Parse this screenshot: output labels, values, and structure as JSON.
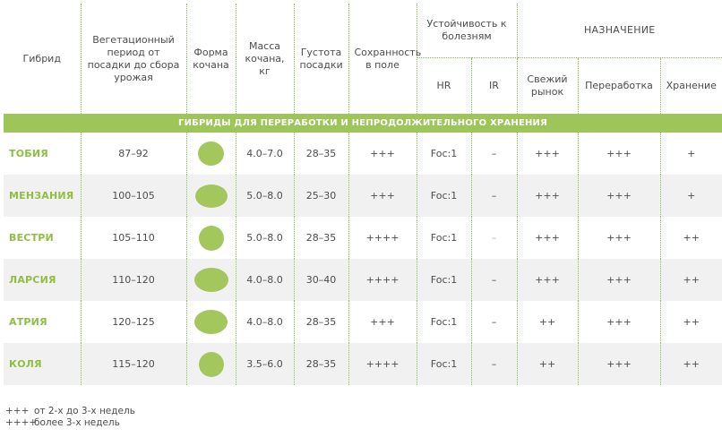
{
  "header": {
    "hybrid": "Гибрид",
    "vegetation_period": "Вегетационный период от посадки до сбора урожая",
    "head_shape": "Форма кочана",
    "head_mass": "Масса кочана, кг",
    "planting_density": "Густота посадки",
    "field_storage": "Сохранность в поле",
    "disease_resistance": "Устойчивость к болезням",
    "hr": "HR",
    "ir": "IR",
    "purpose": "НАЗНАЧЕНИЕ",
    "fresh_market": "Свежий рынок",
    "processing": "Переработка",
    "storage": "Хранение"
  },
  "section_title": "ГИБРИДЫ ДЛЯ ПЕРЕРАБОТКИ И НЕПРОДОЛЖИТЕЛЬНОГО ХРАНЕНИЯ",
  "shape_color": "#a3c75c",
  "rows": [
    {
      "name": "ТОБИЯ",
      "period": "87–92",
      "shape": "round",
      "mass": "4.0–7.0",
      "density": "28–35",
      "field": "+++",
      "hr": "Foc:1",
      "ir": "–",
      "fresh": "+++",
      "processing": "+++",
      "storage": "+"
    },
    {
      "name": "МЕНЗАНИЯ",
      "period": "100–105",
      "shape": "flat-oval",
      "mass": "5.0–8.0",
      "density": "25–30",
      "field": "+++",
      "hr": "Foc:1",
      "ir": "–",
      "fresh": "+++",
      "processing": "+++",
      "storage": "+"
    },
    {
      "name": "ВЕСТРИ",
      "period": "105–110",
      "shape": "round",
      "mass": "5.0–8.0",
      "density": "28–35",
      "field": "++++",
      "hr": "Foc:1",
      "ir": "–",
      "fresh": "+++",
      "processing": "+++",
      "storage": "++"
    },
    {
      "name": "ЛАРСИЯ",
      "period": "110–120",
      "shape": "flat-oval",
      "mass": "4.0–8.0",
      "density": "30–40",
      "field": "++++",
      "hr": "Foc:1",
      "ir": "–",
      "fresh": "+++",
      "processing": "+++",
      "storage": "++"
    },
    {
      "name": "АТРИЯ",
      "period": "120–125",
      "shape": "flat-oval",
      "mass": "4.0–8.0",
      "density": "28–35",
      "field": "+++",
      "hr": "Foc:1",
      "ir": "–",
      "fresh": "++",
      "processing": "+++",
      "storage": "++"
    },
    {
      "name": "КОЛЯ",
      "period": "115–120",
      "shape": "round",
      "mass": "3.5–6.0",
      "density": "28–35",
      "field": "++++",
      "hr": "Foc:1",
      "ir": "–",
      "fresh": "++",
      "processing": "+++",
      "storage": "++"
    }
  ],
  "legend": [
    {
      "symbol": "+++",
      "text": "от 2-х до 3-х недель"
    },
    {
      "symbol": "++++",
      "text": "более 3-х недель"
    }
  ]
}
